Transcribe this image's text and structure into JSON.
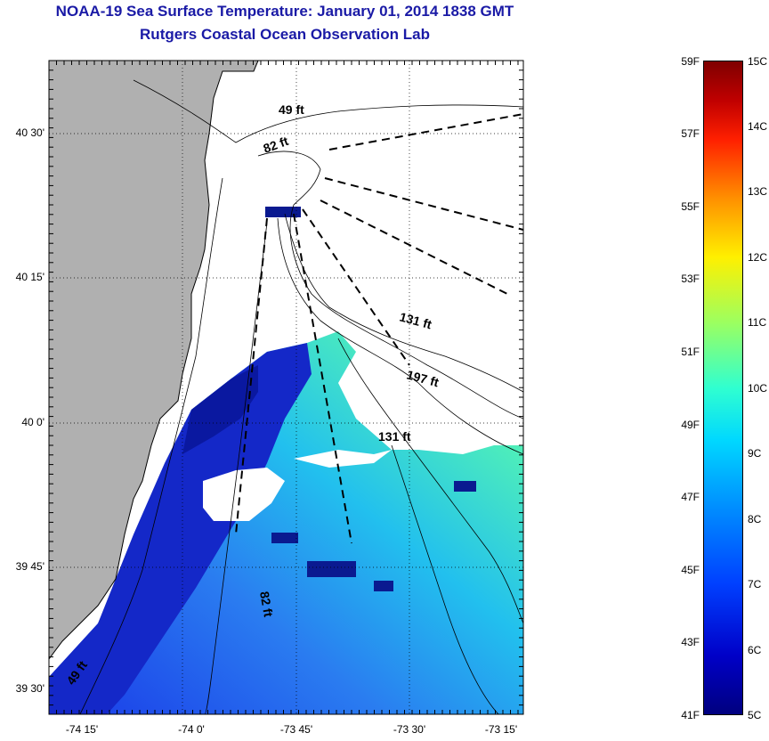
{
  "title": "NOAA-19 Sea Surface Temperature:  January 01, 2014 1838 GMT",
  "subtitle": "Rutgers Coastal Ocean Observation Lab",
  "lat_ticks": [
    "40 30'",
    "40 15'",
    "40 0'",
    "39 45'",
    "39 30'"
  ],
  "lon_ticks": [
    "-74 15'",
    "-74 0'",
    "-73 45'",
    "-73 30'",
    "-73 15'"
  ],
  "depth_labels": [
    "49 ft",
    "82 ft",
    "131 ft",
    "197 ft",
    "131 ft",
    "82 ft",
    "49 ft"
  ],
  "colorbar": {
    "fahrenheit": [
      "59F",
      "57F",
      "55F",
      "53F",
      "51F",
      "49F",
      "47F",
      "45F",
      "43F",
      "41F"
    ],
    "celsius": [
      "15C",
      "14C",
      "13C",
      "12C",
      "11C",
      "10C",
      "9C",
      "8C",
      "7C",
      "6C",
      "5C"
    ]
  },
  "colors": {
    "title": "#1a1aa6",
    "land": "#b0b0b0",
    "cloud": "#ffffff"
  }
}
